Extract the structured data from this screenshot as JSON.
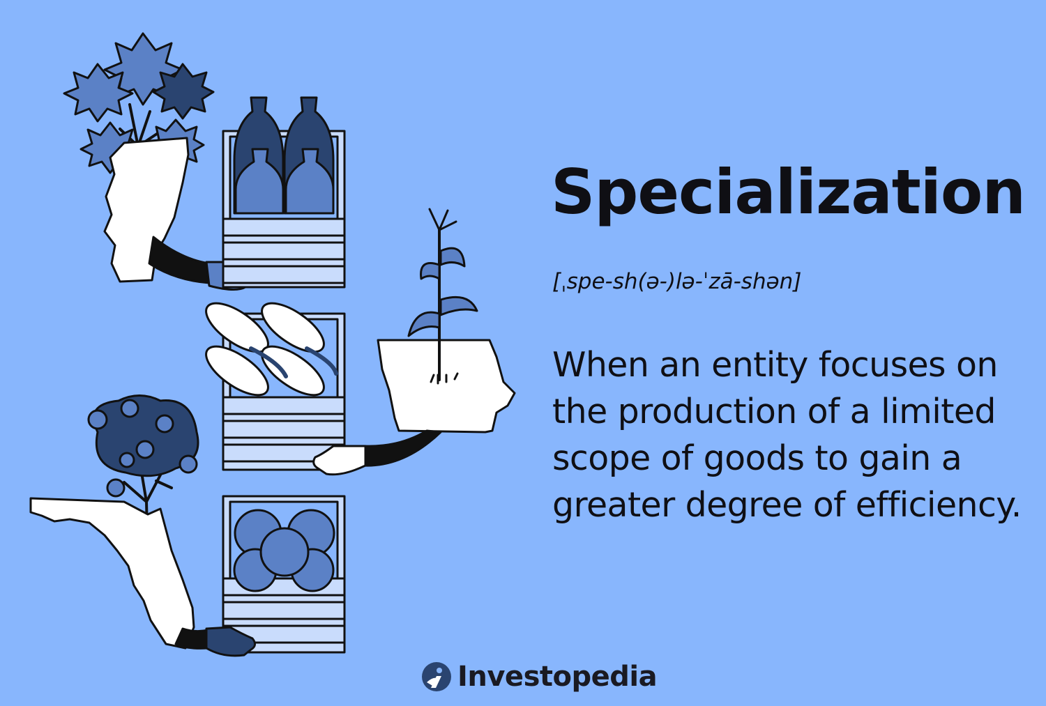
{
  "heading": {
    "title": "Specialization",
    "pronunciation": "[ˌspe-sh(ə-)lə-ˈzā-shən]"
  },
  "definition": {
    "text": "When an entity focuses on the production of a limited scope of goods to gain a greater degree of efficiency."
  },
  "branding": {
    "name": "Investopedia",
    "icon": "investopedia-logo-icon"
  },
  "colors": {
    "background": "#88b6fd",
    "text": "#0f0f14",
    "navy": "#2a4470",
    "mid_blue": "#5b81c6",
    "pale_blue": "#c9dcfc",
    "outline": "#111111",
    "white": "#ffffff"
  },
  "illustration": {
    "scenes": [
      {
        "state": "vermont-shape",
        "product": "maple-syrup-jugs",
        "plant": "maple-tree"
      },
      {
        "state": "iowa-shape",
        "product": "corn-ears",
        "plant": "corn-stalk"
      },
      {
        "state": "florida-shape",
        "product": "oranges",
        "plant": "orange-tree"
      }
    ]
  }
}
